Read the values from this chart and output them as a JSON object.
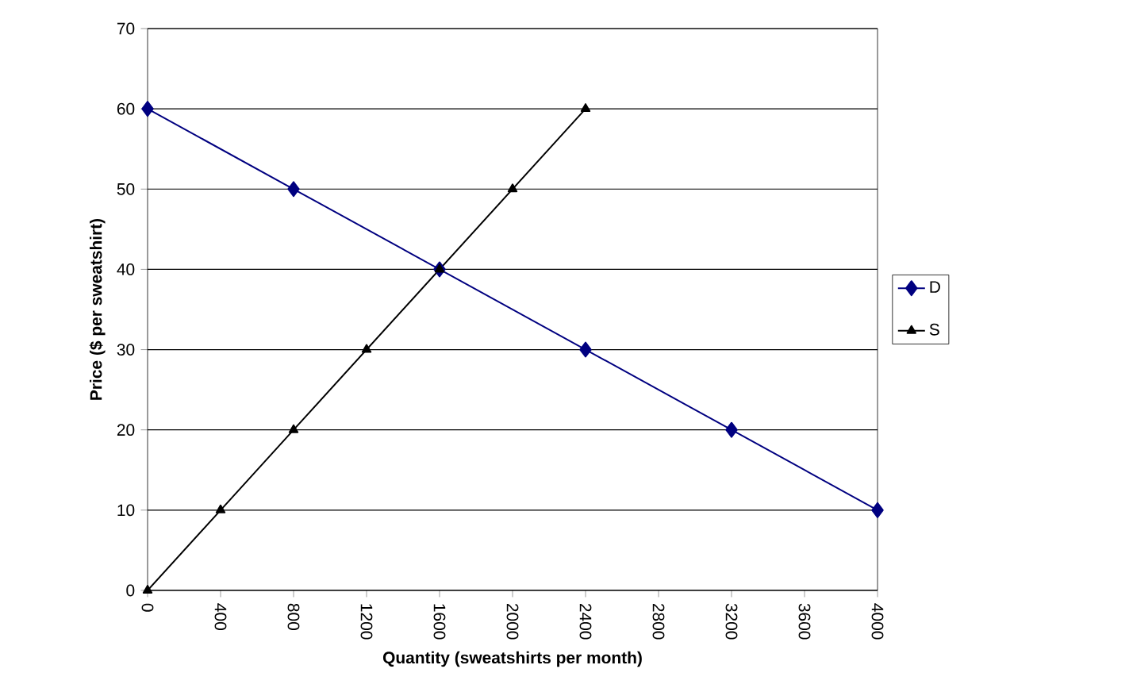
{
  "chart_data": {
    "type": "line",
    "xlabel": "Quantity (sweatshirts per month)",
    "ylabel": "Price ($ per sweatshirt)",
    "xlim": [
      0,
      4000
    ],
    "xticks": [
      0,
      400,
      800,
      1200,
      1600,
      2000,
      2400,
      2800,
      3200,
      3600,
      4000
    ],
    "ylim": [
      0,
      70
    ],
    "yticks": [
      0,
      10,
      20,
      30,
      40,
      50,
      60,
      70
    ],
    "grid": "y",
    "legend": "right",
    "series": [
      {
        "name": "D",
        "color": "#000080",
        "marker": "diamond",
        "x": [
          0,
          800,
          1600,
          2400,
          3200,
          4000
        ],
        "values": [
          60,
          50,
          40,
          30,
          20,
          10
        ]
      },
      {
        "name": "S",
        "color": "#000000",
        "marker": "triangle",
        "x": [
          0,
          400,
          800,
          1200,
          1600,
          2000,
          2400
        ],
        "values": [
          0,
          10,
          20,
          30,
          40,
          50,
          60
        ]
      }
    ]
  }
}
